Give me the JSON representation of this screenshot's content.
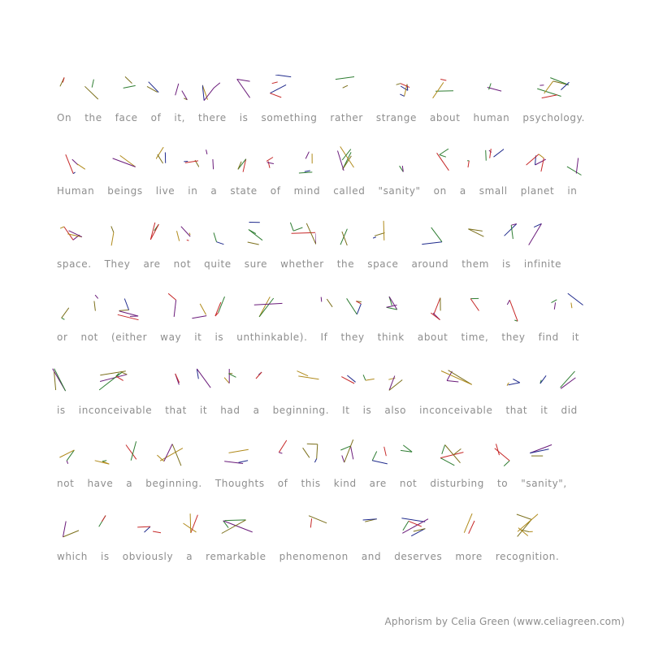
{
  "lines": [
    [
      "On",
      "the",
      "face",
      "of",
      "it,",
      "there",
      "is",
      "something",
      "rather",
      "strange",
      "about",
      "human",
      "psychology."
    ],
    [
      "Human",
      "beings",
      "live",
      "in",
      "a",
      "state",
      "of",
      "mind",
      "called",
      "\"sanity\"",
      "on",
      "a",
      "small",
      "planet",
      "in"
    ],
    [
      "space.",
      "They",
      "are",
      "not",
      "quite",
      "sure",
      "whether",
      "the",
      "space",
      "around",
      "them",
      "is",
      "infinite"
    ],
    [
      "or",
      "not",
      "(either",
      "way",
      "it",
      "is",
      "unthinkable).",
      "If",
      "they",
      "think",
      "about",
      "time,",
      "they",
      "find",
      "it"
    ],
    [
      "is",
      "inconceivable",
      "that",
      "it",
      "had",
      "a",
      "beginning.",
      "It",
      "is",
      "also",
      "inconceivable",
      "that",
      "it",
      "did"
    ],
    [
      "not",
      "have",
      "a",
      "beginning.",
      "Thoughts",
      "of",
      "this",
      "kind",
      "are",
      "not",
      "disturbing",
      "to",
      "\"sanity\","
    ],
    [
      "which",
      "is",
      "obviously",
      "a",
      "remarkable",
      "phenomenon",
      "and",
      "deserves",
      "more",
      "recognition."
    ]
  ],
  "credit": "Aphorism by Celia Green (www.celiagreen.com)",
  "colors": {
    "text": "#8e8e8e",
    "strokes": [
      "#6a1b7a",
      "#2e7d32",
      "#1f2a8c",
      "#b08a1a",
      "#c62828",
      "#7b6f1a"
    ]
  }
}
